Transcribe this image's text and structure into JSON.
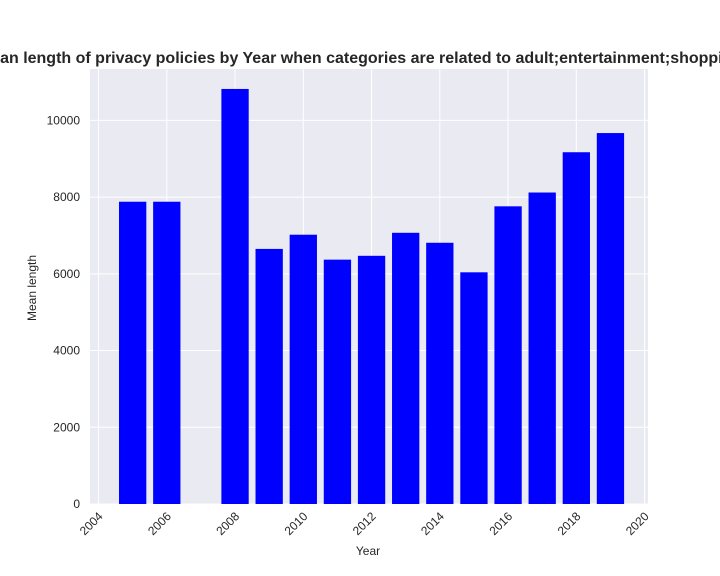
{
  "chart_data": {
    "type": "bar",
    "title": "Mean length of privacy policies by Year when categories are related to adult;entertainment;shopping",
    "xlabel": "Year",
    "ylabel": "Mean length",
    "x": [
      2005,
      2006,
      2008,
      2009,
      2010,
      2011,
      2012,
      2013,
      2014,
      2015,
      2016,
      2017,
      2018,
      2019
    ],
    "values": [
      7880,
      7880,
      10820,
      6650,
      7020,
      6370,
      6470,
      7070,
      6810,
      6040,
      7760,
      8120,
      9170,
      9670
    ],
    "xlim": [
      2003.75,
      2020.1
    ],
    "ylim": [
      0,
      11340
    ],
    "xticks": [
      2004,
      2006,
      2008,
      2010,
      2012,
      2014,
      2016,
      2018,
      2020
    ],
    "yticks": [
      0,
      2000,
      4000,
      6000,
      8000,
      10000
    ],
    "bar_width_years": 0.8,
    "grid": true,
    "colors": {
      "bar": "#0000ff",
      "background": "#eaeaf2",
      "grid": "#ffffff",
      "text": "#262626"
    }
  }
}
